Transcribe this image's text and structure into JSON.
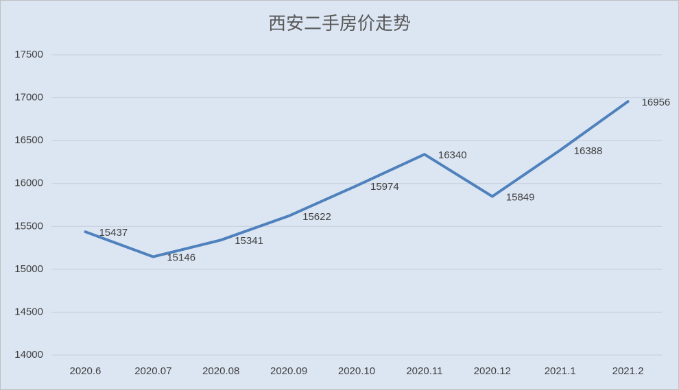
{
  "chart_data": {
    "type": "line",
    "title": "西安二手房价走势",
    "categories": [
      "2020.6",
      "2020.07",
      "2020.08",
      "2020.09",
      "2020.10",
      "2020.11",
      "2020.12",
      "2021.1",
      "2021.2"
    ],
    "values": [
      15437,
      15146,
      15341,
      15622,
      15974,
      16340,
      15849,
      16388,
      16956
    ],
    "color": "#4f81bd",
    "ylim": [
      14000,
      17500
    ],
    "yticks": [
      14000,
      14500,
      15000,
      15500,
      16000,
      16500,
      17000,
      17500
    ],
    "grid": true
  }
}
